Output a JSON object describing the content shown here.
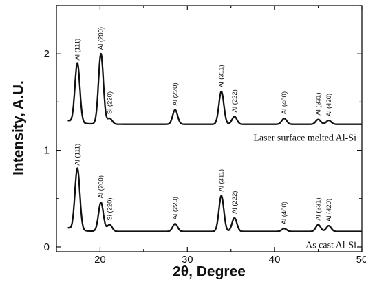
{
  "chart_data": {
    "type": "line",
    "xlabel": "2θ, Degree",
    "ylabel": "Intensity, A.U.",
    "xlim": [
      15,
      50
    ],
    "ylim": [
      -0.05,
      2.5
    ],
    "xticks": [
      "20",
      "30",
      "40",
      "50"
    ],
    "yticks": [
      "0",
      "1",
      "2"
    ],
    "grid": false,
    "legend": "none",
    "series": [
      {
        "name": "Laser surface melted Al-Si",
        "baseline": 1.27,
        "peaks": [
          {
            "x": 17.4,
            "y": 1.89,
            "label": "Al (111)"
          },
          {
            "x": 20.1,
            "y": 2.0,
            "label": "Al (200)"
          },
          {
            "x": 21.1,
            "y": 1.33,
            "label": "Si (220)"
          },
          {
            "x": 28.6,
            "y": 1.42,
            "label": "Al (220)"
          },
          {
            "x": 33.9,
            "y": 1.61,
            "label": "Al (311)"
          },
          {
            "x": 35.4,
            "y": 1.35,
            "label": "Al (222)"
          },
          {
            "x": 41.1,
            "y": 1.33,
            "label": "Al (400)"
          },
          {
            "x": 45.0,
            "y": 1.32,
            "label": "Al (331)"
          },
          {
            "x": 46.2,
            "y": 1.31,
            "label": "Al (420)"
          }
        ]
      },
      {
        "name": "As cast Al-Si",
        "baseline": 0.16,
        "peaks": [
          {
            "x": 17.4,
            "y": 0.8,
            "label": "Al (111)"
          },
          {
            "x": 20.1,
            "y": 0.46,
            "label": "Al (200)"
          },
          {
            "x": 21.1,
            "y": 0.23,
            "label": "Si (220)"
          },
          {
            "x": 28.6,
            "y": 0.24,
            "label": "Al (220)"
          },
          {
            "x": 33.9,
            "y": 0.53,
            "label": "Al (311)"
          },
          {
            "x": 35.4,
            "y": 0.3,
            "label": "Al (222)"
          },
          {
            "x": 41.1,
            "y": 0.19,
            "label": "Al (400)"
          },
          {
            "x": 45.0,
            "y": 0.23,
            "label": "Al (331)"
          },
          {
            "x": 46.2,
            "y": 0.22,
            "label": "Al (420)"
          }
        ]
      }
    ]
  }
}
